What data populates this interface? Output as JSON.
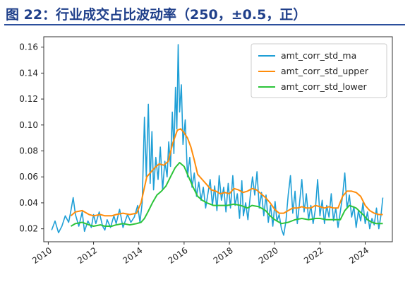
{
  "figure": {
    "title": "图 22：行业成交占比波动率（250，±0.5，正）"
  },
  "chart_data": {
    "type": "line",
    "title": "",
    "xlabel": "",
    "ylabel": "",
    "xlim": [
      2009.8,
      2025.2
    ],
    "ylim": [
      0.01,
      0.168
    ],
    "x_ticks": [
      2010,
      2012,
      2014,
      2016,
      2018,
      2020,
      2022,
      2024
    ],
    "x_tick_labels": [
      "2010",
      "2012",
      "2014",
      "2016",
      "2018",
      "2020",
      "2022",
      "2024"
    ],
    "y_ticks": [
      0.02,
      0.04,
      0.06,
      0.08,
      0.1,
      0.12,
      0.14,
      0.16
    ],
    "y_tick_labels": [
      "0.02",
      "0.04",
      "0.06",
      "0.08",
      "0.10",
      "0.12",
      "0.14",
      "0.16"
    ],
    "grid": false,
    "legend_position": "upper-right",
    "series": [
      {
        "name": "amt_corr_std_ma",
        "color": "#1f9fd6",
        "points": [
          [
            2010.15,
            0.019
          ],
          [
            2010.3,
            0.026
          ],
          [
            2010.45,
            0.017
          ],
          [
            2010.6,
            0.022
          ],
          [
            2010.75,
            0.03
          ],
          [
            2010.9,
            0.025
          ],
          [
            2011.0,
            0.034
          ],
          [
            2011.1,
            0.044
          ],
          [
            2011.2,
            0.031
          ],
          [
            2011.35,
            0.022
          ],
          [
            2011.5,
            0.033
          ],
          [
            2011.6,
            0.018
          ],
          [
            2011.75,
            0.026
          ],
          [
            2011.9,
            0.021
          ],
          [
            2012.0,
            0.031
          ],
          [
            2012.1,
            0.024
          ],
          [
            2012.25,
            0.033
          ],
          [
            2012.4,
            0.022
          ],
          [
            2012.5,
            0.019
          ],
          [
            2012.6,
            0.027
          ],
          [
            2012.75,
            0.021
          ],
          [
            2012.9,
            0.03
          ],
          [
            2013.0,
            0.024
          ],
          [
            2013.15,
            0.035
          ],
          [
            2013.3,
            0.021
          ],
          [
            2013.5,
            0.031
          ],
          [
            2013.65,
            0.025
          ],
          [
            2013.8,
            0.029
          ],
          [
            2013.95,
            0.038
          ],
          [
            2014.05,
            0.025
          ],
          [
            2014.15,
            0.04
          ],
          [
            2014.25,
            0.106
          ],
          [
            2014.33,
            0.06
          ],
          [
            2014.42,
            0.116
          ],
          [
            2014.5,
            0.055
          ],
          [
            2014.58,
            0.095
          ],
          [
            2014.65,
            0.05
          ],
          [
            2014.75,
            0.075
          ],
          [
            2014.85,
            0.058
          ],
          [
            2014.95,
            0.083
          ],
          [
            2015.05,
            0.05
          ],
          [
            2015.15,
            0.072
          ],
          [
            2015.25,
            0.06
          ],
          [
            2015.32,
            0.087
          ],
          [
            2015.4,
            0.068
          ],
          [
            2015.48,
            0.11
          ],
          [
            2015.55,
            0.078
          ],
          [
            2015.62,
            0.129
          ],
          [
            2015.68,
            0.097
          ],
          [
            2015.74,
            0.162
          ],
          [
            2015.8,
            0.11
          ],
          [
            2015.88,
            0.131
          ],
          [
            2015.95,
            0.085
          ],
          [
            2016.05,
            0.104
          ],
          [
            2016.15,
            0.06
          ],
          [
            2016.25,
            0.075
          ],
          [
            2016.35,
            0.052
          ],
          [
            2016.45,
            0.063
          ],
          [
            2016.55,
            0.045
          ],
          [
            2016.65,
            0.056
          ],
          [
            2016.75,
            0.042
          ],
          [
            2016.85,
            0.052
          ],
          [
            2016.95,
            0.036
          ],
          [
            2017.05,
            0.047
          ],
          [
            2017.15,
            0.058
          ],
          [
            2017.25,
            0.038
          ],
          [
            2017.35,
            0.053
          ],
          [
            2017.45,
            0.034
          ],
          [
            2017.55,
            0.061
          ],
          [
            2017.65,
            0.042
          ],
          [
            2017.75,
            0.052
          ],
          [
            2017.85,
            0.033
          ],
          [
            2017.95,
            0.055
          ],
          [
            2018.05,
            0.036
          ],
          [
            2018.15,
            0.061
          ],
          [
            2018.25,
            0.038
          ],
          [
            2018.35,
            0.047
          ],
          [
            2018.45,
            0.028
          ],
          [
            2018.55,
            0.057
          ],
          [
            2018.62,
            0.03
          ],
          [
            2018.72,
            0.04
          ],
          [
            2018.82,
            0.027
          ],
          [
            2018.92,
            0.045
          ],
          [
            2019.02,
            0.06
          ],
          [
            2019.12,
            0.046
          ],
          [
            2019.22,
            0.064
          ],
          [
            2019.32,
            0.036
          ],
          [
            2019.42,
            0.048
          ],
          [
            2019.52,
            0.03
          ],
          [
            2019.62,
            0.046
          ],
          [
            2019.72,
            0.025
          ],
          [
            2019.82,
            0.038
          ],
          [
            2019.92,
            0.022
          ],
          [
            2020.02,
            0.041
          ],
          [
            2020.1,
            0.026
          ],
          [
            2020.2,
            0.031
          ],
          [
            2020.3,
            0.02
          ],
          [
            2020.4,
            0.015
          ],
          [
            2020.5,
            0.026
          ],
          [
            2020.6,
            0.046
          ],
          [
            2020.7,
            0.061
          ],
          [
            2020.8,
            0.032
          ],
          [
            2020.9,
            0.049
          ],
          [
            2021.0,
            0.024
          ],
          [
            2021.1,
            0.04
          ],
          [
            2021.2,
            0.058
          ],
          [
            2021.3,
            0.033
          ],
          [
            2021.4,
            0.047
          ],
          [
            2021.5,
            0.027
          ],
          [
            2021.6,
            0.038
          ],
          [
            2021.7,
            0.024
          ],
          [
            2021.8,
            0.035
          ],
          [
            2021.9,
            0.058
          ],
          [
            2022.0,
            0.03
          ],
          [
            2022.1,
            0.042
          ],
          [
            2022.2,
            0.024
          ],
          [
            2022.3,
            0.038
          ],
          [
            2022.4,
            0.029
          ],
          [
            2022.5,
            0.047
          ],
          [
            2022.6,
            0.026
          ],
          [
            2022.7,
            0.036
          ],
          [
            2022.8,
            0.021
          ],
          [
            2022.9,
            0.033
          ],
          [
            2023.0,
            0.045
          ],
          [
            2023.1,
            0.063
          ],
          [
            2023.2,
            0.036
          ],
          [
            2023.3,
            0.046
          ],
          [
            2023.4,
            0.029
          ],
          [
            2023.5,
            0.037
          ],
          [
            2023.6,
            0.021
          ],
          [
            2023.7,
            0.034
          ],
          [
            2023.8,
            0.026
          ],
          [
            2023.9,
            0.04
          ],
          [
            2024.0,
            0.024
          ],
          [
            2024.1,
            0.033
          ],
          [
            2024.2,
            0.02
          ],
          [
            2024.3,
            0.028
          ],
          [
            2024.4,
            0.023
          ],
          [
            2024.5,
            0.036
          ],
          [
            2024.6,
            0.02
          ],
          [
            2024.7,
            0.031
          ],
          [
            2024.78,
            0.044
          ]
        ]
      },
      {
        "name": "amt_corr_std_upper",
        "color": "#ff8c0a",
        "points": [
          [
            2011.0,
            0.03
          ],
          [
            2011.2,
            0.033
          ],
          [
            2011.5,
            0.034
          ],
          [
            2011.8,
            0.031
          ],
          [
            2012.0,
            0.03
          ],
          [
            2012.3,
            0.031
          ],
          [
            2012.5,
            0.03
          ],
          [
            2012.8,
            0.03
          ],
          [
            2013.0,
            0.031
          ],
          [
            2013.3,
            0.032
          ],
          [
            2013.6,
            0.031
          ],
          [
            2013.9,
            0.032
          ],
          [
            2014.1,
            0.04
          ],
          [
            2014.2,
            0.048
          ],
          [
            2014.35,
            0.06
          ],
          [
            2014.5,
            0.063
          ],
          [
            2014.7,
            0.067
          ],
          [
            2014.9,
            0.07
          ],
          [
            2015.1,
            0.069
          ],
          [
            2015.3,
            0.072
          ],
          [
            2015.5,
            0.086
          ],
          [
            2015.7,
            0.096
          ],
          [
            2015.85,
            0.097
          ],
          [
            2016.0,
            0.094
          ],
          [
            2016.15,
            0.09
          ],
          [
            2016.3,
            0.083
          ],
          [
            2016.45,
            0.073
          ],
          [
            2016.6,
            0.062
          ],
          [
            2016.8,
            0.058
          ],
          [
            2017.0,
            0.054
          ],
          [
            2017.2,
            0.05
          ],
          [
            2017.4,
            0.049
          ],
          [
            2017.6,
            0.047
          ],
          [
            2017.8,
            0.048
          ],
          [
            2018.0,
            0.047
          ],
          [
            2018.2,
            0.051
          ],
          [
            2018.4,
            0.05
          ],
          [
            2018.6,
            0.048
          ],
          [
            2018.8,
            0.049
          ],
          [
            2019.0,
            0.051
          ],
          [
            2019.2,
            0.05
          ],
          [
            2019.4,
            0.047
          ],
          [
            2019.6,
            0.044
          ],
          [
            2019.8,
            0.04
          ],
          [
            2020.0,
            0.035
          ],
          [
            2020.2,
            0.032
          ],
          [
            2020.4,
            0.032
          ],
          [
            2020.6,
            0.034
          ],
          [
            2020.8,
            0.036
          ],
          [
            2021.0,
            0.036
          ],
          [
            2021.2,
            0.037
          ],
          [
            2021.4,
            0.036
          ],
          [
            2021.6,
            0.036
          ],
          [
            2021.8,
            0.038
          ],
          [
            2022.0,
            0.037
          ],
          [
            2022.2,
            0.036
          ],
          [
            2022.4,
            0.037
          ],
          [
            2022.6,
            0.036
          ],
          [
            2022.8,
            0.036
          ],
          [
            2023.0,
            0.045
          ],
          [
            2023.2,
            0.049
          ],
          [
            2023.4,
            0.049
          ],
          [
            2023.6,
            0.048
          ],
          [
            2023.8,
            0.045
          ],
          [
            2024.0,
            0.038
          ],
          [
            2024.2,
            0.034
          ],
          [
            2024.4,
            0.032
          ],
          [
            2024.6,
            0.031
          ],
          [
            2024.78,
            0.031
          ]
        ]
      },
      {
        "name": "amt_corr_std_lower",
        "color": "#2cc43a",
        "points": [
          [
            2011.0,
            0.022
          ],
          [
            2011.2,
            0.024
          ],
          [
            2011.5,
            0.025
          ],
          [
            2011.8,
            0.023
          ],
          [
            2012.0,
            0.022
          ],
          [
            2012.3,
            0.023
          ],
          [
            2012.5,
            0.022
          ],
          [
            2012.8,
            0.022
          ],
          [
            2013.0,
            0.023
          ],
          [
            2013.3,
            0.024
          ],
          [
            2013.6,
            0.023
          ],
          [
            2013.9,
            0.024
          ],
          [
            2014.1,
            0.025
          ],
          [
            2014.25,
            0.028
          ],
          [
            2014.4,
            0.033
          ],
          [
            2014.6,
            0.04
          ],
          [
            2014.8,
            0.046
          ],
          [
            2015.0,
            0.049
          ],
          [
            2015.2,
            0.053
          ],
          [
            2015.4,
            0.06
          ],
          [
            2015.6,
            0.067
          ],
          [
            2015.8,
            0.071
          ],
          [
            2016.0,
            0.068
          ],
          [
            2016.2,
            0.06
          ],
          [
            2016.4,
            0.052
          ],
          [
            2016.6,
            0.045
          ],
          [
            2016.8,
            0.042
          ],
          [
            2017.0,
            0.04
          ],
          [
            2017.3,
            0.038
          ],
          [
            2017.6,
            0.038
          ],
          [
            2017.9,
            0.038
          ],
          [
            2018.2,
            0.039
          ],
          [
            2018.5,
            0.038
          ],
          [
            2018.8,
            0.036
          ],
          [
            2019.0,
            0.038
          ],
          [
            2019.3,
            0.037
          ],
          [
            2019.6,
            0.034
          ],
          [
            2019.8,
            0.03
          ],
          [
            2020.0,
            0.027
          ],
          [
            2020.3,
            0.024
          ],
          [
            2020.6,
            0.025
          ],
          [
            2020.9,
            0.027
          ],
          [
            2021.2,
            0.028
          ],
          [
            2021.5,
            0.027
          ],
          [
            2021.8,
            0.028
          ],
          [
            2022.0,
            0.028
          ],
          [
            2022.3,
            0.027
          ],
          [
            2022.6,
            0.027
          ],
          [
            2022.9,
            0.027
          ],
          [
            2023.1,
            0.034
          ],
          [
            2023.3,
            0.038
          ],
          [
            2023.6,
            0.036
          ],
          [
            2023.9,
            0.031
          ],
          [
            2024.1,
            0.027
          ],
          [
            2024.3,
            0.025
          ],
          [
            2024.5,
            0.024
          ],
          [
            2024.78,
            0.024
          ]
        ]
      }
    ]
  }
}
